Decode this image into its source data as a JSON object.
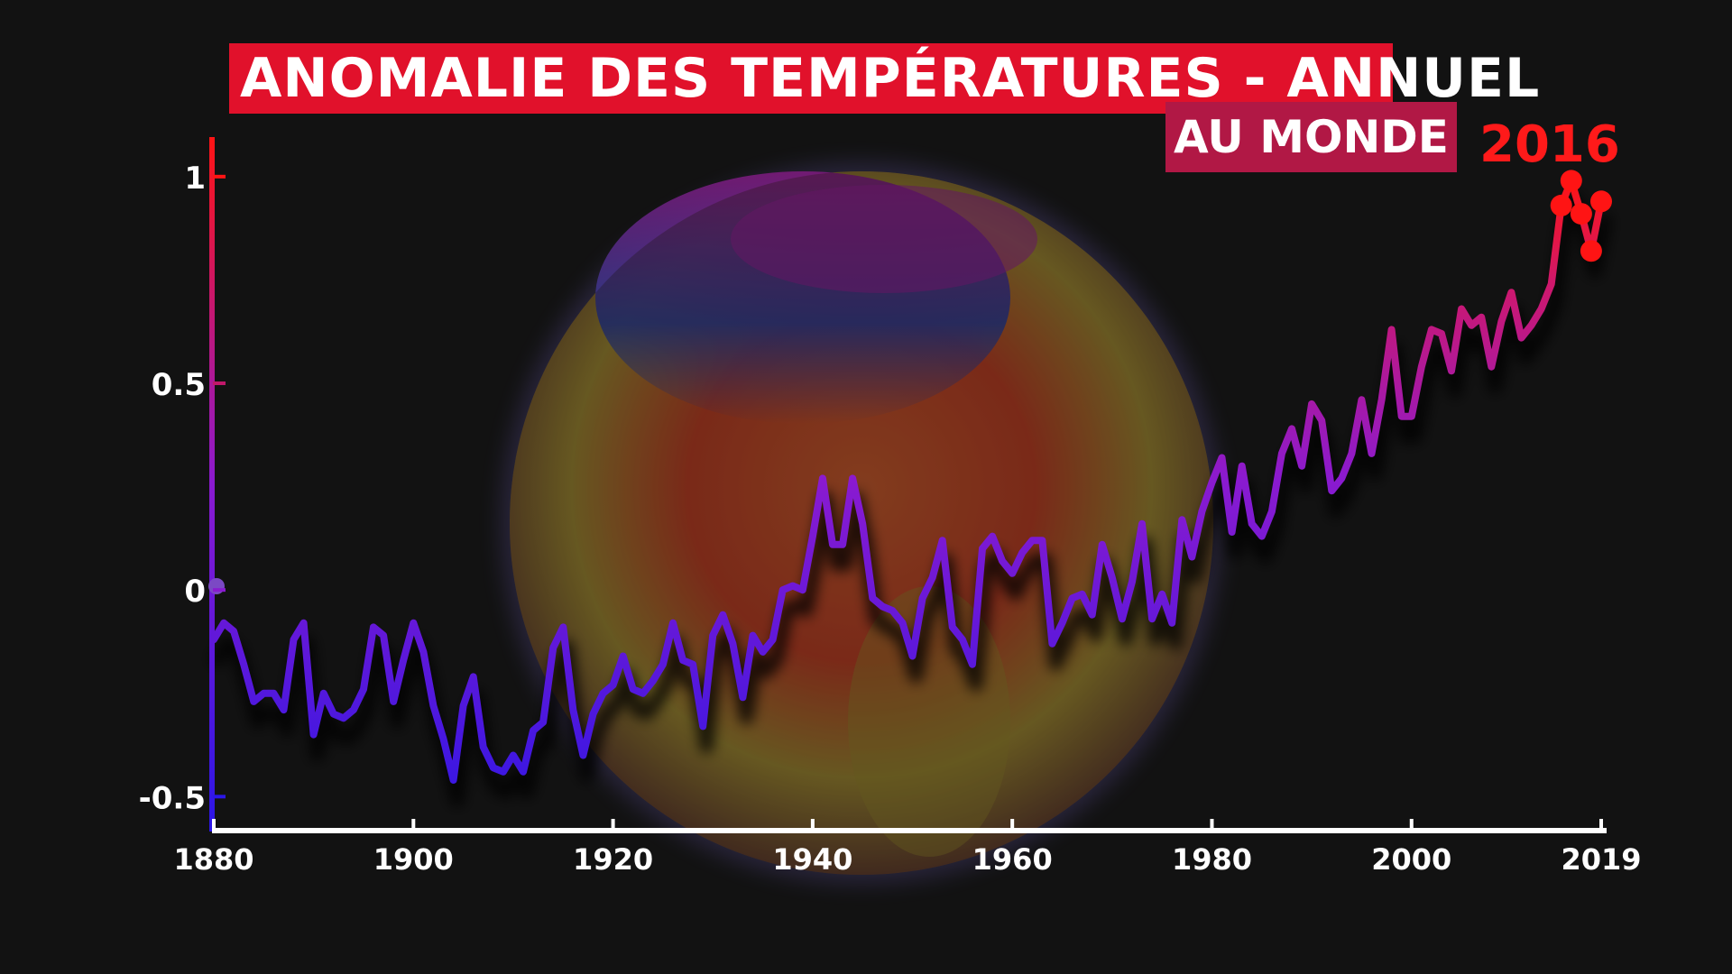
{
  "chart_data": {
    "type": "line",
    "title": "ANOMALIE DES TEMPÉRATURES - ANNUEL",
    "subtitle": "AU MONDE",
    "highlight_label": "2016",
    "x_ticks": [
      "1880",
      "1900",
      "1920",
      "1940",
      "1960",
      "1980",
      "2000",
      "2019"
    ],
    "y_ticks": [
      "1",
      "0.5",
      "0",
      "-0.5"
    ],
    "xlim": [
      1880,
      2019
    ],
    "ylim": [
      -0.58,
      1.1
    ],
    "grid": false,
    "colors": {
      "cold": "#2b16e6",
      "mid": "#8a1ad0",
      "hot": "#ff1414",
      "background": "#121212",
      "title_box": "#e1112b",
      "subtitle_box": "#b11845"
    },
    "highlighted_years": [
      2015,
      2016,
      2017,
      2018,
      2019
    ],
    "series": [
      {
        "x": [
          1880,
          1881,
          1882,
          1883,
          1884,
          1885,
          1886,
          1887,
          1888,
          1889,
          1890,
          1891,
          1892,
          1893,
          1894,
          1895,
          1896,
          1897,
          1898,
          1899,
          1900,
          1901,
          1902,
          1903,
          1904,
          1905,
          1906,
          1907,
          1908,
          1909,
          1910,
          1911,
          1912,
          1913,
          1914,
          1915,
          1916,
          1917,
          1918,
          1919,
          1920,
          1921,
          1922,
          1923,
          1924,
          1925,
          1926,
          1927,
          1928,
          1929,
          1930,
          1931,
          1932,
          1933,
          1934,
          1935,
          1936,
          1937,
          1938,
          1939,
          1940,
          1941,
          1942,
          1943,
          1944,
          1945,
          1946,
          1947,
          1948,
          1949,
          1950,
          1951,
          1952,
          1953,
          1954,
          1955,
          1956,
          1957,
          1958,
          1959,
          1960,
          1961,
          1962,
          1963,
          1964,
          1965,
          1966,
          1967,
          1968,
          1969,
          1970,
          1971,
          1972,
          1973,
          1974,
          1975,
          1976,
          1977,
          1978,
          1979,
          1980,
          1981,
          1982,
          1983,
          1984,
          1985,
          1986,
          1987,
          1988,
          1989,
          1990,
          1991,
          1992,
          1993,
          1994,
          1995,
          1996,
          1997,
          1998,
          1999,
          2000,
          2001,
          2002,
          2003,
          2004,
          2005,
          2006,
          2007,
          2008,
          2009,
          2010,
          2011,
          2012,
          2013,
          2014,
          2015,
          2016,
          2017,
          2018,
          2019
        ],
        "values": [
          -0.12,
          -0.08,
          -0.1,
          -0.18,
          -0.27,
          -0.25,
          -0.25,
          -0.29,
          -0.12,
          -0.08,
          -0.35,
          -0.25,
          -0.3,
          -0.31,
          -0.29,
          -0.24,
          -0.09,
          -0.11,
          -0.27,
          -0.17,
          -0.08,
          -0.15,
          -0.28,
          -0.36,
          -0.46,
          -0.28,
          -0.21,
          -0.38,
          -0.43,
          -0.44,
          -0.4,
          -0.44,
          -0.34,
          -0.32,
          -0.14,
          -0.09,
          -0.29,
          -0.4,
          -0.3,
          -0.25,
          -0.23,
          -0.16,
          -0.24,
          -0.25,
          -0.22,
          -0.18,
          -0.08,
          -0.17,
          -0.18,
          -0.33,
          -0.11,
          -0.06,
          -0.13,
          -0.26,
          -0.11,
          -0.15,
          -0.12,
          0.0,
          0.01,
          0.0,
          0.13,
          0.27,
          0.11,
          0.11,
          0.27,
          0.16,
          -0.02,
          -0.04,
          -0.05,
          -0.08,
          -0.16,
          -0.02,
          0.03,
          0.12,
          -0.09,
          -0.12,
          -0.18,
          0.1,
          0.13,
          0.07,
          0.04,
          0.09,
          0.12,
          0.12,
          -0.13,
          -0.08,
          -0.02,
          -0.01,
          -0.06,
          0.11,
          0.03,
          -0.07,
          0.02,
          0.16,
          -0.07,
          -0.01,
          -0.08,
          0.17,
          0.08,
          0.19,
          0.26,
          0.32,
          0.14,
          0.3,
          0.16,
          0.13,
          0.19,
          0.33,
          0.39,
          0.3,
          0.45,
          0.41,
          0.24,
          0.27,
          0.33,
          0.46,
          0.33,
          0.46,
          0.63,
          0.42,
          0.42,
          0.54,
          0.63,
          0.62,
          0.53,
          0.68,
          0.64,
          0.66,
          0.54,
          0.65,
          0.72,
          0.61,
          0.64,
          0.68,
          0.74,
          0.93,
          0.99,
          0.91,
          0.82,
          0.94
        ]
      }
    ]
  }
}
